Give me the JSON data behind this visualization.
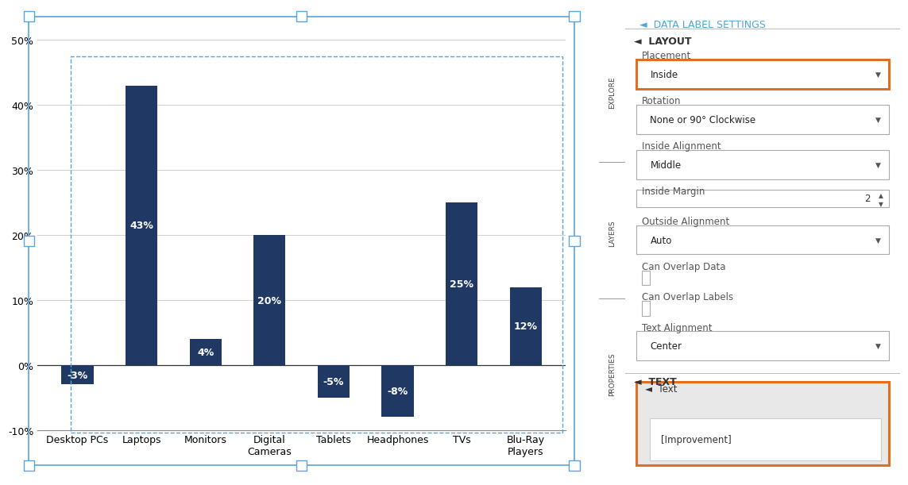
{
  "categories": [
    "Desktop PCs",
    "Laptops",
    "Monitors",
    "Digital\nCameras",
    "Tablets",
    "Headphones",
    "TVs",
    "Blu-Ray\nPlayers"
  ],
  "values": [
    -3,
    43,
    4,
    20,
    -5,
    -8,
    25,
    12
  ],
  "labels": [
    "-3%",
    "43%",
    "4%",
    "20%",
    "-5%",
    "-8%",
    "25%",
    "12%"
  ],
  "bar_color": "#1F3864",
  "label_color": "#ffffff",
  "ylim": [
    -10,
    50
  ],
  "yticks": [
    -10,
    0,
    10,
    20,
    30,
    40,
    50
  ],
  "ytick_labels": [
    "-10%",
    "0%",
    "10%",
    "20%",
    "30%",
    "40%",
    "50%"
  ],
  "background_color": "#ffffff",
  "chart_bg": "#ffffff",
  "grid_color": "#d0d0d0",
  "label_fontsize": 9,
  "tick_fontsize": 9,
  "panel_title_color": "#4da6d8",
  "orange_border_color": "#e07020",
  "blue_border_color": "#5ba3d9",
  "sidebar_bg": "#e8e8e8",
  "nav_bg": "#c0c0c0",
  "placement_value": "Inside",
  "rotation_value": "None or 90° Clockwise",
  "inside_alignment_value": "Middle",
  "inside_margin_value": "2",
  "outside_alignment_value": "Auto",
  "text_alignment_value": "Center",
  "text_value": "[Improvement]"
}
